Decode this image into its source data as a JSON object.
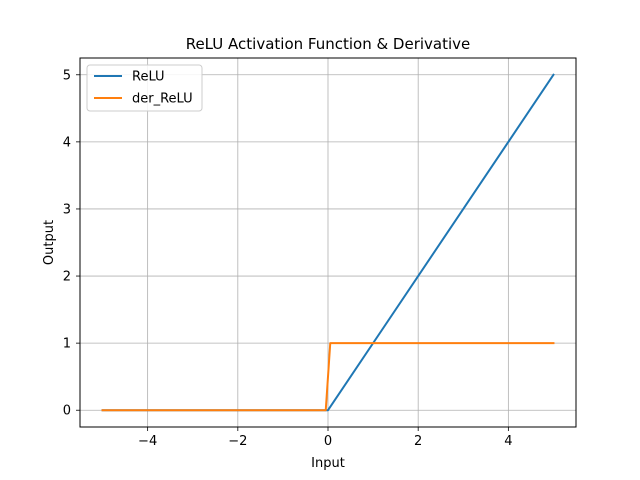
{
  "chart_data": {
    "type": "line",
    "title": "ReLU Activation Function & Derivative",
    "xlabel": "Input",
    "ylabel": "Output",
    "xlim": [
      -5.5,
      5.5
    ],
    "ylim": [
      -0.25,
      5.25
    ],
    "xticks": [
      -4,
      -2,
      0,
      2,
      4
    ],
    "yticks": [
      0,
      1,
      2,
      3,
      4,
      5
    ],
    "xtick_labels": [
      "−4",
      "−2",
      "0",
      "2",
      "4"
    ],
    "ytick_labels": [
      "0",
      "1",
      "2",
      "3",
      "4",
      "5"
    ],
    "grid": true,
    "legend_position": "top-left",
    "series": [
      {
        "name": "ReLU",
        "color": "#1f77b4",
        "x": [
          -5,
          0,
          5
        ],
        "y": [
          0,
          0,
          5
        ]
      },
      {
        "name": "der_ReLU",
        "color": "#ff7f0e",
        "x": [
          -5,
          -0.05,
          0.05,
          5
        ],
        "y": [
          0,
          0,
          1,
          1
        ]
      }
    ]
  }
}
